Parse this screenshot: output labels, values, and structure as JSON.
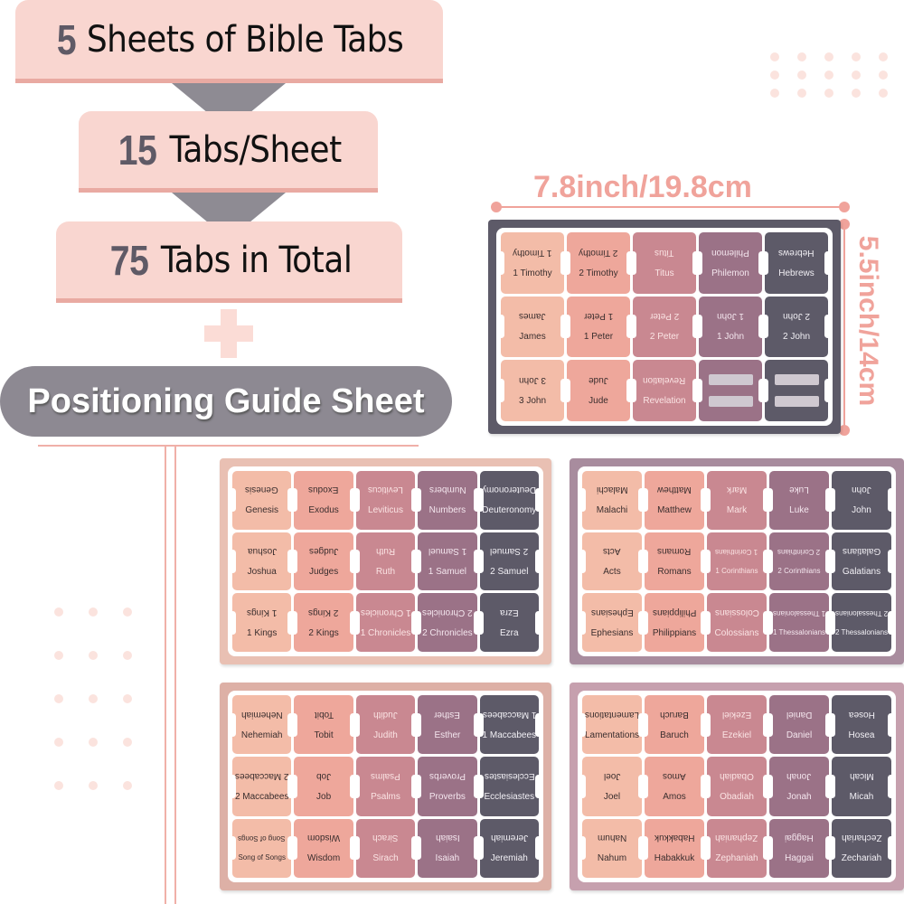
{
  "headline": {
    "line1": {
      "num": "5",
      "text": "Sheets of Bible Tabs"
    },
    "line2": {
      "num": "15",
      "text": "Tabs/Sheet"
    },
    "line3": {
      "num": "75",
      "text": "Tabs in Total"
    },
    "guide": "Positioning Guide Sheet"
  },
  "dimensions": {
    "width": "7.8inch/19.8cm",
    "height": "5.5inch/14cm"
  },
  "colors": {
    "tab_columns": [
      "#f3bca8",
      "#eea79b",
      "#c98891",
      "#9b7287",
      "#5d5a68"
    ],
    "accent": "#f0a39b",
    "gray": "#8d8992"
  },
  "sheets": [
    {
      "frame": "#5d5a68",
      "tabs": [
        "1 Timothy",
        "2 Timothy",
        "Titus",
        "Philemon",
        "Hebrews",
        "James",
        "1 Peter",
        "2 Peter",
        "1 John",
        "2 John",
        "3 John",
        "Jude",
        "Revelation",
        "",
        ""
      ]
    },
    {
      "frame": "#e9c0b3",
      "tabs": [
        "Genesis",
        "Exodus",
        "Leviticus",
        "Numbers",
        "Deuteronomy",
        "Joshua",
        "Judges",
        "Ruth",
        "1 Samuel",
        "2 Samuel",
        "1 Kings",
        "2 Kings",
        "1 Chronicles",
        "2 Chronicles",
        "Ezra"
      ]
    },
    {
      "frame": "#a88c9e",
      "tabs": [
        "Malachi",
        "Matthew",
        "Mark",
        "Luke",
        "John",
        "Acts",
        "Romans",
        "1 Corinthians",
        "2 Corinthians",
        "Galatians",
        "Ephesians",
        "Philippians",
        "Colossians",
        "1 Thessalonians",
        "2 Thessalonians"
      ]
    },
    {
      "frame": "#ddb0a6",
      "tabs": [
        "Nehemiah",
        "Tobit",
        "Judith",
        "Esther",
        "1 Maccabees",
        "2 Maccabees",
        "Job",
        "Psalms",
        "Proverbs",
        "Ecclesiastes",
        "Song of Songs",
        "Wisdom",
        "Sirach",
        "Isaiah",
        "Jeremiah"
      ]
    },
    {
      "frame": "#c6a0ae",
      "tabs": [
        "Lamentations",
        "Baruch",
        "Ezekiel",
        "Daniel",
        "Hosea",
        "Joel",
        "Amos",
        "Obadiah",
        "Jonah",
        "Micah",
        "Nahum",
        "Habakkuk",
        "Zephaniah",
        "Haggai",
        "Zechariah"
      ]
    }
  ]
}
